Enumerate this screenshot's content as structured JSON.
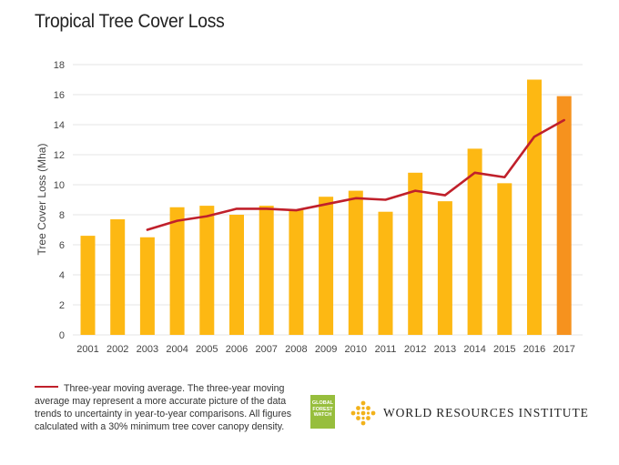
{
  "title": "Tropical Tree Cover Loss",
  "chart_data": {
    "type": "bar",
    "title": "Tropical Tree Cover Loss",
    "xlabel": "",
    "ylabel": "Tree Cover Loss (Mha)",
    "ylim": [
      0,
      18
    ],
    "yticks": [
      0,
      2,
      4,
      6,
      8,
      10,
      12,
      14,
      16,
      18
    ],
    "grid": true,
    "categories": [
      "2001",
      "2002",
      "2003",
      "2004",
      "2005",
      "2006",
      "2007",
      "2008",
      "2009",
      "2010",
      "2011",
      "2012",
      "2013",
      "2014",
      "2015",
      "2016",
      "2017"
    ],
    "series": [
      {
        "name": "Tree cover loss",
        "type": "bar",
        "values": [
          6.6,
          7.7,
          6.5,
          8.5,
          8.6,
          8.0,
          8.6,
          8.3,
          9.2,
          9.6,
          8.2,
          10.8,
          8.9,
          12.4,
          10.1,
          17.0,
          15.9
        ]
      },
      {
        "name": "Three-year moving average",
        "type": "line",
        "values": [
          null,
          null,
          7.0,
          7.6,
          7.9,
          8.4,
          8.4,
          8.3,
          8.7,
          9.1,
          9.0,
          9.6,
          9.3,
          10.8,
          10.5,
          13.2,
          14.3
        ]
      }
    ],
    "colors": {
      "bar": "#fdb813",
      "bar_highlight": "#f6921e",
      "line": "#c0202b",
      "grid": "#e6e6e6"
    }
  },
  "legend": {
    "text": "Three-year moving average. The three-year moving average may represent a more accurate picture of the data trends to uncertainty in year-to-year comparisons. All figures calculated with a 30% minimum tree cover canopy density."
  },
  "logos": {
    "gfw": "GLOBAL FOREST WATCH",
    "wri": "WORLD RESOURCES INSTITUTE"
  }
}
